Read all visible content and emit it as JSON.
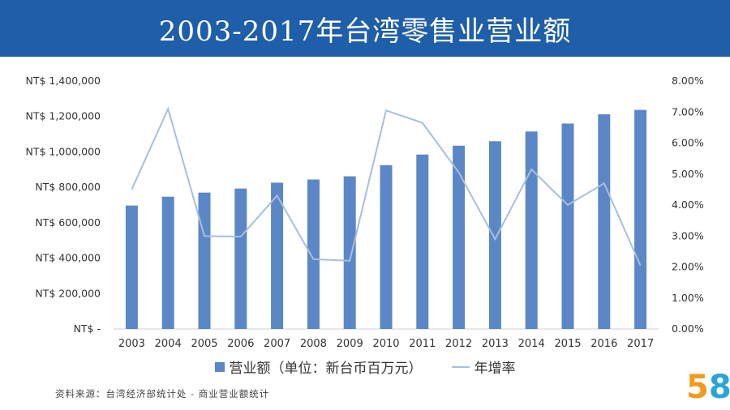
{
  "title": "2003-2017年台湾零售业营业额",
  "legend": {
    "bar_label": "营业额（单位：新台币百万元）",
    "line_label": "年增率"
  },
  "source": "资料来源：台湾经济部统计处 - 商业营业额统计",
  "logo": {
    "digit1": "5",
    "digit2": "8"
  },
  "colors": {
    "title_bg": "#1f5ea8",
    "bar": "#5b87c6",
    "line": "#a8bfdc",
    "logo_5": "#f29a1e",
    "logo_8": "#2aa5d8"
  },
  "chart_data": {
    "type": "bar",
    "categories": [
      "2003",
      "2004",
      "2005",
      "2006",
      "2007",
      "2008",
      "2009",
      "2010",
      "2011",
      "2012",
      "2013",
      "2014",
      "2015",
      "2016",
      "2017"
    ],
    "series": [
      {
        "name": "营业额（单位：新台币百万元）",
        "type": "bar",
        "axis": "left",
        "values": [
          697000,
          747000,
          770000,
          793000,
          826000,
          844000,
          862000,
          925000,
          985000,
          1035000,
          1060000,
          1115000,
          1160000,
          1212000,
          1237000
        ]
      },
      {
        "name": "年增率",
        "type": "line",
        "axis": "right",
        "values": [
          4.5,
          7.1,
          3.0,
          2.98,
          4.3,
          2.25,
          2.2,
          7.05,
          6.65,
          5.05,
          2.9,
          5.15,
          4.0,
          4.7,
          2.05
        ]
      }
    ],
    "y_left": {
      "ylim": [
        0,
        1400000
      ],
      "ticks": [
        0,
        200000,
        400000,
        600000,
        800000,
        1000000,
        1200000,
        1400000
      ],
      "tick_labels": [
        "NT$ -",
        "NT$ 200,000",
        "NT$ 400,000",
        "NT$ 600,000",
        "NT$ 800,000",
        "NT$ 1,000,000",
        "NT$ 1,200,000",
        "NT$ 1,400,000"
      ]
    },
    "y_right": {
      "ylim": [
        0,
        8
      ],
      "ticks": [
        0,
        1,
        2,
        3,
        4,
        5,
        6,
        7,
        8
      ],
      "tick_labels": [
        "0.00%",
        "1.00%",
        "2.00%",
        "3.00%",
        "4.00%",
        "5.00%",
        "6.00%",
        "7.00%",
        "8.00%"
      ]
    },
    "grid": false,
    "legend_position": "bottom"
  }
}
